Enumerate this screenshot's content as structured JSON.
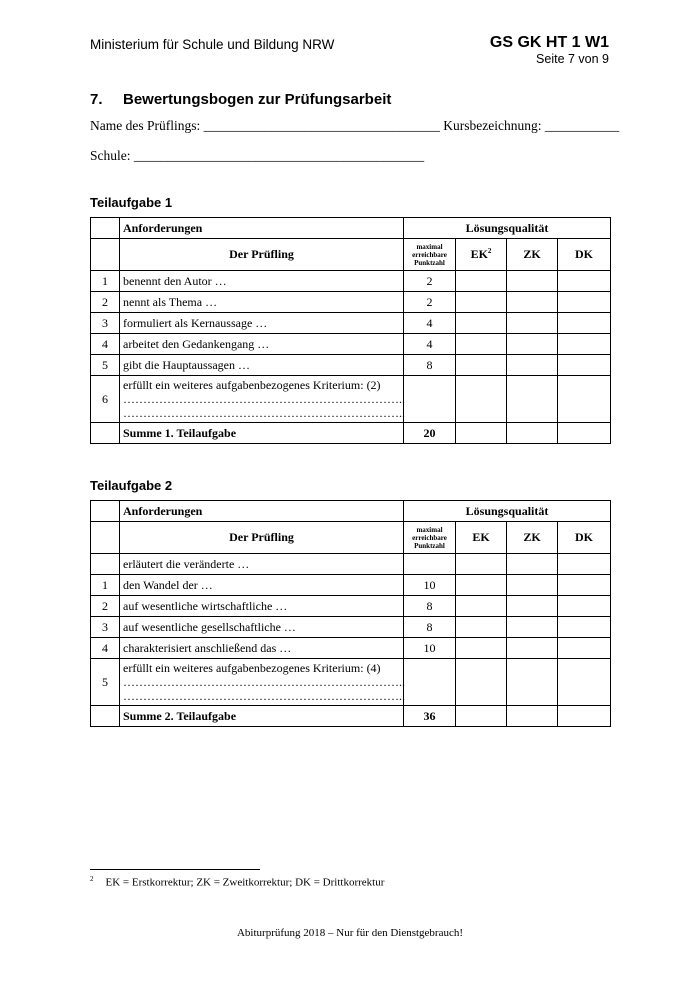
{
  "header": {
    "ministry": "Ministerium für Schule und Bildung NRW",
    "code": "GS GK HT 1 W1",
    "page": "Seite 7 von 9"
  },
  "section": {
    "number": "7.",
    "title": "Bewertungsbogen zur Prüfungsarbeit"
  },
  "form": {
    "line1": "Name des Prüflings: ___________________________________ Kursbezeichnung: ___________",
    "line2": "Schule: ___________________________________________"
  },
  "columns": {
    "requirements": "Anforderungen",
    "quality": "Lösungsqualität",
    "candidate": "Der Prüfling",
    "max_points": "maximal erreichbare Punktzahl",
    "ek": "EK",
    "ek_sup": "2",
    "zk": "ZK",
    "dk": "DK"
  },
  "tasks": [
    {
      "title": "Teilaufgabe 1",
      "rows": [
        {
          "n": "1",
          "text": "benennt den Autor …",
          "points": "2"
        },
        {
          "n": "2",
          "text": "nennt als Thema …",
          "points": "2"
        },
        {
          "n": "3",
          "text": "formuliert als Kernaussage …",
          "points": "4"
        },
        {
          "n": "4",
          "text": "arbeitet den Gedankengang …",
          "points": "4"
        },
        {
          "n": "5",
          "text": "gibt die Hauptaussagen …",
          "points": "8"
        },
        {
          "n": "6",
          "text": "erfüllt ein weiteres aufgabenbezogenes Kriterium: (2)",
          "dots": "……………………………………………………………..",
          "points": ""
        }
      ],
      "sum_label": "Summe 1. Teilaufgabe",
      "sum": "20"
    },
    {
      "title": "Teilaufgabe 2",
      "rows": [
        {
          "n": "",
          "text": "erläutert die veränderte …",
          "points": ""
        },
        {
          "n": "1",
          "text": "den Wandel der …",
          "points": "10"
        },
        {
          "n": "2",
          "text": "auf wesentliche wirtschaftliche …",
          "points": "8"
        },
        {
          "n": "3",
          "text": "auf wesentliche gesellschaftliche …",
          "points": "8"
        },
        {
          "n": "4",
          "text": "charakterisiert anschließend das …",
          "points": "10"
        },
        {
          "n": "5",
          "text": "erfüllt ein weiteres aufgabenbezogenes Kriterium: (4)",
          "dots": "……………………………………………………………..",
          "points": ""
        }
      ],
      "sum_label": "Summe 2. Teilaufgabe",
      "sum": "36"
    }
  ],
  "footnote": {
    "mark": "2",
    "text": "EK = Erstkorrektur; ZK = Zweitkorrektur; DK = Drittkorrektur"
  },
  "footer": "Abiturprüfung 2018 – Nur für den Dienstgebrauch!"
}
